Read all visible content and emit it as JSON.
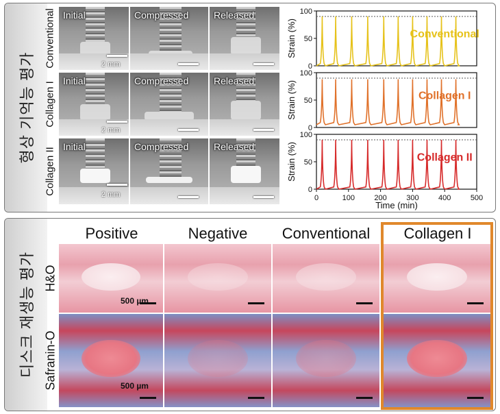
{
  "top_section": {
    "side_label": "형상 기억능 평가",
    "row_labels": [
      "Conventional",
      "Collagen I",
      "Collagen II"
    ],
    "photo_titles": [
      "Initial",
      "Compressed",
      "Released"
    ],
    "scale_text": "2 mm"
  },
  "bottom_section": {
    "side_label": "디스크 재생능 평가",
    "column_titles": [
      "Positive",
      "Negative",
      "Conventional",
      "Collagen I"
    ],
    "row_labels": [
      "H&O",
      "Safranin-O"
    ],
    "scale_text": "500 µm"
  },
  "chart_data": {
    "type": "line",
    "panels": [
      {
        "name": "Conventional",
        "color": "#e6c21a",
        "peak": 90,
        "baseline": 0
      },
      {
        "name": "Collagen I",
        "color": "#e0712a",
        "peak": 88,
        "baseline": 5
      },
      {
        "name": "Collagen II",
        "color": "#d62a2a",
        "peak": 90,
        "baseline": 0
      }
    ],
    "cycle_peaks_x": [
      18,
      60,
      110,
      160,
      210,
      255,
      300,
      345,
      390,
      435
    ],
    "ylabel": "Strain (%)",
    "xlabel": "Time (min)",
    "ylim": [
      0,
      100
    ],
    "yticks": [
      "0",
      "50",
      "100"
    ],
    "xlim": [
      0,
      500
    ],
    "xticks": [
      "0",
      "100",
      "200",
      "300",
      "400",
      "500"
    ],
    "reference_line": 90
  }
}
